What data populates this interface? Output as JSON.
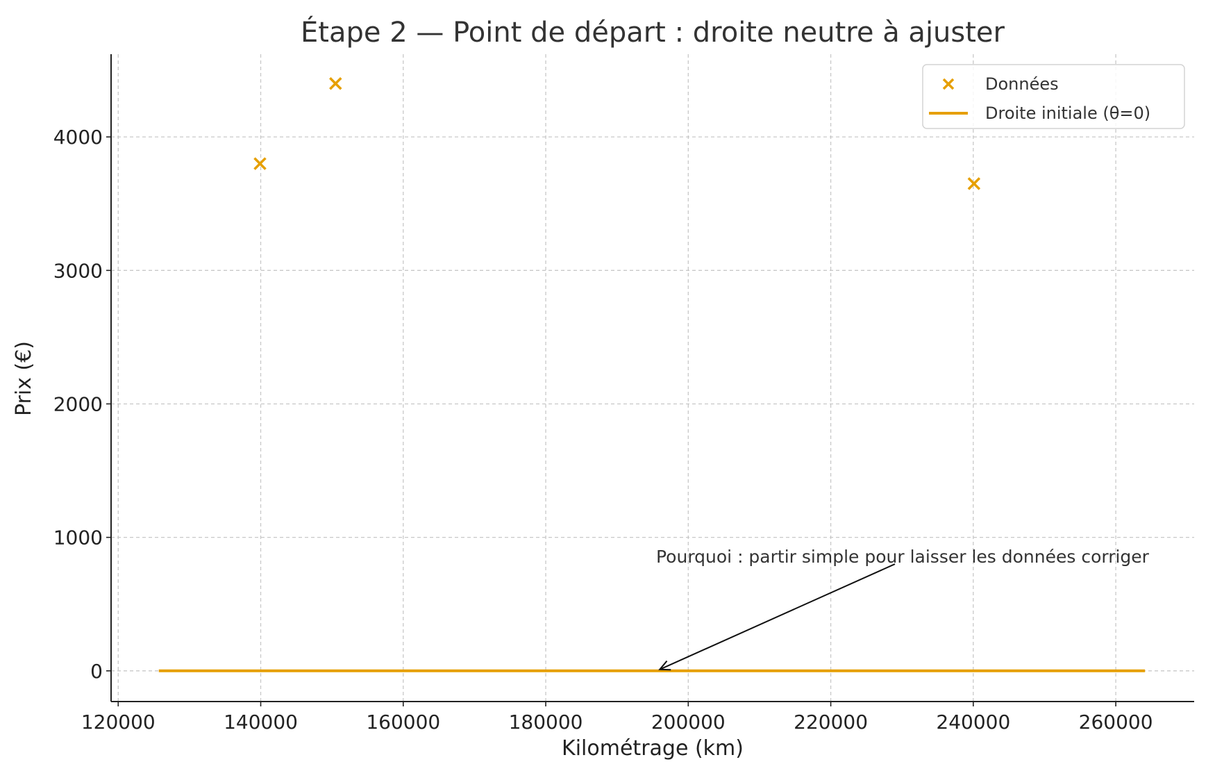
{
  "chart_data": {
    "type": "scatter",
    "title": "Étape 2 — Point de départ : droite neutre à ajuster",
    "xlabel": "Kilométrage (km)",
    "ylabel": "Prix (€)",
    "xlim": [
      119000,
      271000
    ],
    "ylim": [
      -230,
      4620
    ],
    "xticks": [
      120000,
      140000,
      160000,
      180000,
      200000,
      220000,
      240000,
      260000
    ],
    "xtick_labels": [
      "120000",
      "140000",
      "160000",
      "180000",
      "200000",
      "220000",
      "240000",
      "260000"
    ],
    "yticks": [
      0,
      1000,
      2000,
      3000,
      4000
    ],
    "ytick_labels": [
      "0",
      "1000",
      "2000",
      "3000",
      "4000"
    ],
    "grid": true,
    "legend_position": "top-right",
    "series": [
      {
        "name": "Données",
        "kind": "scatter",
        "marker": "x",
        "color": "#E69F00",
        "x": [
          139900,
          150500,
          240100
        ],
        "y": [
          3800,
          4400,
          3650
        ]
      },
      {
        "name": "Droite initiale (θ=0)",
        "kind": "line",
        "color": "#E69F00",
        "x": [
          125700,
          264100
        ],
        "y": [
          0,
          0
        ]
      }
    ],
    "annotations": [
      {
        "text": "Pourquoi : partir simple pour laisser les données corriger",
        "point": [
          196000,
          0
        ],
        "text_at": [
          229000,
          800
        ]
      }
    ]
  }
}
